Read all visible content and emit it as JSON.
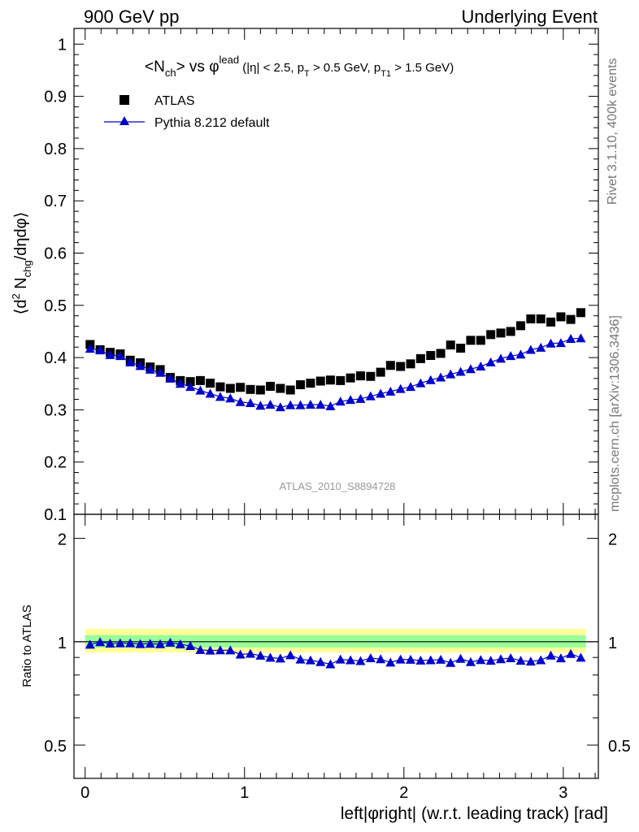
{
  "header": {
    "left": "900 GeV pp",
    "right": "Underlying Event"
  },
  "side": {
    "rivet": "Rivet 3.1.10,  400k events",
    "mcplots": "mcplots.cern.ch [arXiv:1306.3436]"
  },
  "colors": {
    "atlas": "#000000",
    "pythia": "#0000cc",
    "band_outer": "#ffff99",
    "band_inner": "#99ff99"
  },
  "chart_data": [
    {
      "type": "scatter",
      "panel": "main",
      "title": "<Nch> vs φlead (|η| < 2.5, pT > 0.5 GeV, pT1 > 1.5 GeV)",
      "title_parts": {
        "a": "<N",
        "a_sub": "ch",
        "b": "> vs φ",
        "b_sup": "lead",
        "c": " (|η| < 2.5, p",
        "c_sub": "T",
        "d": " > 0.5 GeV, p",
        "d_sub": "T1",
        "e": " > 1.5 GeV)"
      },
      "ylabel": "⟨d² Nchg/dηdφ⟩",
      "ylabel_parts": {
        "a": "⟨d",
        "a_sup": "2",
        "b": " N",
        "b_sub": "chg",
        "c": "/dηdφ⟩"
      },
      "xlim": [
        -0.07,
        3.22
      ],
      "ylim": [
        0.1,
        1.03
      ],
      "yticks": [
        0.1,
        0.2,
        0.3,
        0.4,
        0.5,
        0.6,
        0.7,
        0.8,
        0.9,
        1.0
      ],
      "ytick_labels": [
        "0.1",
        "0.2",
        "0.3",
        "0.4",
        "0.5",
        "0.6",
        "0.7",
        "0.8",
        "0.9",
        "1"
      ],
      "legend": [
        "ATLAS",
        "Pythia 8.212 default"
      ],
      "legend_position": "top-left",
      "watermark": "ATLAS_2010_S8894728",
      "x": [
        0.031,
        0.094,
        0.157,
        0.22,
        0.283,
        0.346,
        0.408,
        0.471,
        0.534,
        0.597,
        0.66,
        0.723,
        0.785,
        0.848,
        0.911,
        0.974,
        1.037,
        1.1,
        1.162,
        1.225,
        1.288,
        1.351,
        1.414,
        1.477,
        1.539,
        1.602,
        1.665,
        1.728,
        1.791,
        1.854,
        1.916,
        1.979,
        2.042,
        2.105,
        2.168,
        2.231,
        2.293,
        2.356,
        2.419,
        2.482,
        2.545,
        2.608,
        2.67,
        2.733,
        2.796,
        2.859,
        2.922,
        2.985,
        3.047,
        3.11
      ],
      "series": [
        {
          "name": "ATLAS",
          "marker": "square",
          "values": [
            0.425,
            0.415,
            0.41,
            0.407,
            0.395,
            0.39,
            0.382,
            0.377,
            0.362,
            0.356,
            0.354,
            0.356,
            0.351,
            0.344,
            0.341,
            0.343,
            0.339,
            0.338,
            0.345,
            0.341,
            0.338,
            0.348,
            0.351,
            0.355,
            0.357,
            0.356,
            0.361,
            0.365,
            0.364,
            0.372,
            0.385,
            0.383,
            0.388,
            0.398,
            0.404,
            0.408,
            0.424,
            0.418,
            0.433,
            0.433,
            0.444,
            0.447,
            0.45,
            0.461,
            0.474,
            0.474,
            0.468,
            0.478,
            0.473,
            0.486
          ]
        },
        {
          "name": "Pythia 8.212 default",
          "marker": "triangle",
          "values": [
            0.417,
            0.414,
            0.405,
            0.403,
            0.391,
            0.384,
            0.377,
            0.371,
            0.36,
            0.35,
            0.344,
            0.337,
            0.331,
            0.325,
            0.322,
            0.315,
            0.313,
            0.308,
            0.31,
            0.305,
            0.309,
            0.309,
            0.31,
            0.31,
            0.307,
            0.316,
            0.319,
            0.321,
            0.326,
            0.331,
            0.335,
            0.34,
            0.344,
            0.351,
            0.357,
            0.362,
            0.368,
            0.373,
            0.378,
            0.383,
            0.391,
            0.398,
            0.403,
            0.406,
            0.415,
            0.419,
            0.427,
            0.428,
            0.436,
            0.437
          ]
        }
      ]
    },
    {
      "type": "scatter",
      "panel": "ratio",
      "ylabel": "Ratio to ATLAS",
      "xlabel": "left|φright| (w.r.t. leading track) [rad]",
      "xlim": [
        -0.07,
        3.22
      ],
      "ylim": [
        0.4,
        2.35
      ],
      "yscale": "log",
      "yticks": [
        0.5,
        1,
        2
      ],
      "ytick_labels": [
        "0.5",
        "1",
        "2"
      ],
      "xticks": [
        0,
        1,
        2,
        3
      ],
      "xtick_labels": [
        "0",
        "1",
        "2",
        "3"
      ],
      "reference": 1,
      "band_outer": [
        0.93,
        1.09
      ],
      "band_inner": [
        0.962,
        1.045
      ],
      "series": [
        {
          "name": "Pythia 8.212 default",
          "marker": "triangle",
          "values": [
            0.981,
            0.998,
            0.988,
            0.99,
            0.99,
            0.985,
            0.987,
            0.984,
            0.994,
            0.983,
            0.972,
            0.947,
            0.943,
            0.945,
            0.944,
            0.918,
            0.923,
            0.911,
            0.899,
            0.894,
            0.914,
            0.888,
            0.883,
            0.873,
            0.86,
            0.888,
            0.884,
            0.879,
            0.896,
            0.89,
            0.87,
            0.888,
            0.887,
            0.882,
            0.884,
            0.887,
            0.868,
            0.892,
            0.873,
            0.885,
            0.881,
            0.89,
            0.896,
            0.881,
            0.876,
            0.884,
            0.912,
            0.895,
            0.922,
            0.899
          ]
        }
      ]
    }
  ]
}
